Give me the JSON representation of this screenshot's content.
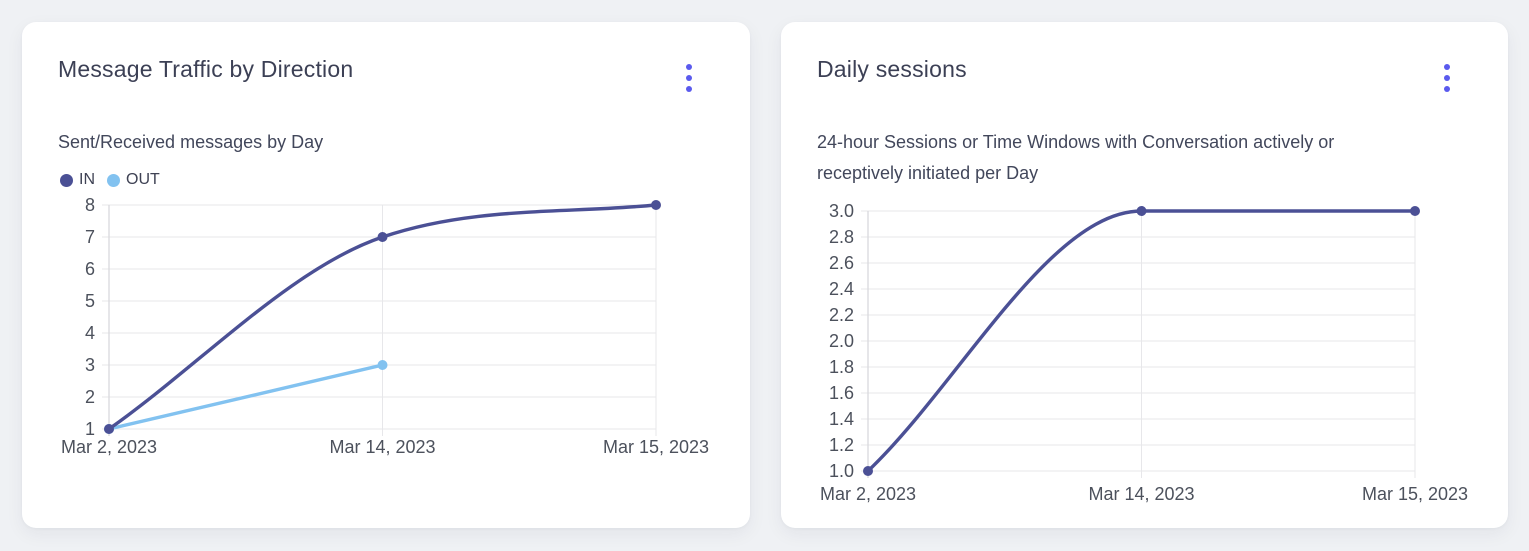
{
  "colors": {
    "accent_menu": "#5a5aee",
    "series_in": "#4b5095",
    "series_out": "#82c2f0",
    "grid": "#e7e7ea",
    "axis": "#d6d6da"
  },
  "cards": [
    {
      "title": "Message Traffic by Direction",
      "subtitle": "Sent/Received messages by Day",
      "menu_icon": "kebab-menu-icon"
    },
    {
      "title": "Daily sessions",
      "subtitle": "24-hour Sessions or Time Windows with Conversation actively or receptively initiated per Day",
      "menu_icon": "kebab-menu-icon"
    }
  ],
  "chart_data": [
    {
      "type": "line",
      "title": "Message Traffic by Direction",
      "subtitle": "Sent/Received messages by Day",
      "categories": [
        "Mar 2, 2023",
        "Mar 14, 2023",
        "Mar 15, 2023"
      ],
      "series": [
        {
          "name": "IN",
          "color": "#4b5095",
          "values": [
            1,
            7,
            8
          ]
        },
        {
          "name": "OUT",
          "color": "#82c2f0",
          "values": [
            1,
            3,
            null
          ]
        }
      ],
      "ylim": [
        1,
        8
      ],
      "ytick_step": 1,
      "ytick_decimals": 0,
      "grid": true,
      "legend_position": "top-left",
      "line_style": "smooth-monotone"
    },
    {
      "type": "line",
      "title": "Daily sessions",
      "subtitle": "24-hour Sessions or Time Windows with Conversation actively or receptively initiated per Day",
      "categories": [
        "Mar 2, 2023",
        "Mar 14, 2023",
        "Mar 15, 2023"
      ],
      "series": [
        {
          "name": "Daily sessions",
          "color": "#4b5095",
          "values": [
            1,
            3,
            3
          ]
        }
      ],
      "ylim": [
        1,
        3
      ],
      "ytick_step": 0.2,
      "ytick_decimals": 1,
      "grid": true,
      "legend_position": "none",
      "line_style": "smooth-monotone"
    }
  ]
}
